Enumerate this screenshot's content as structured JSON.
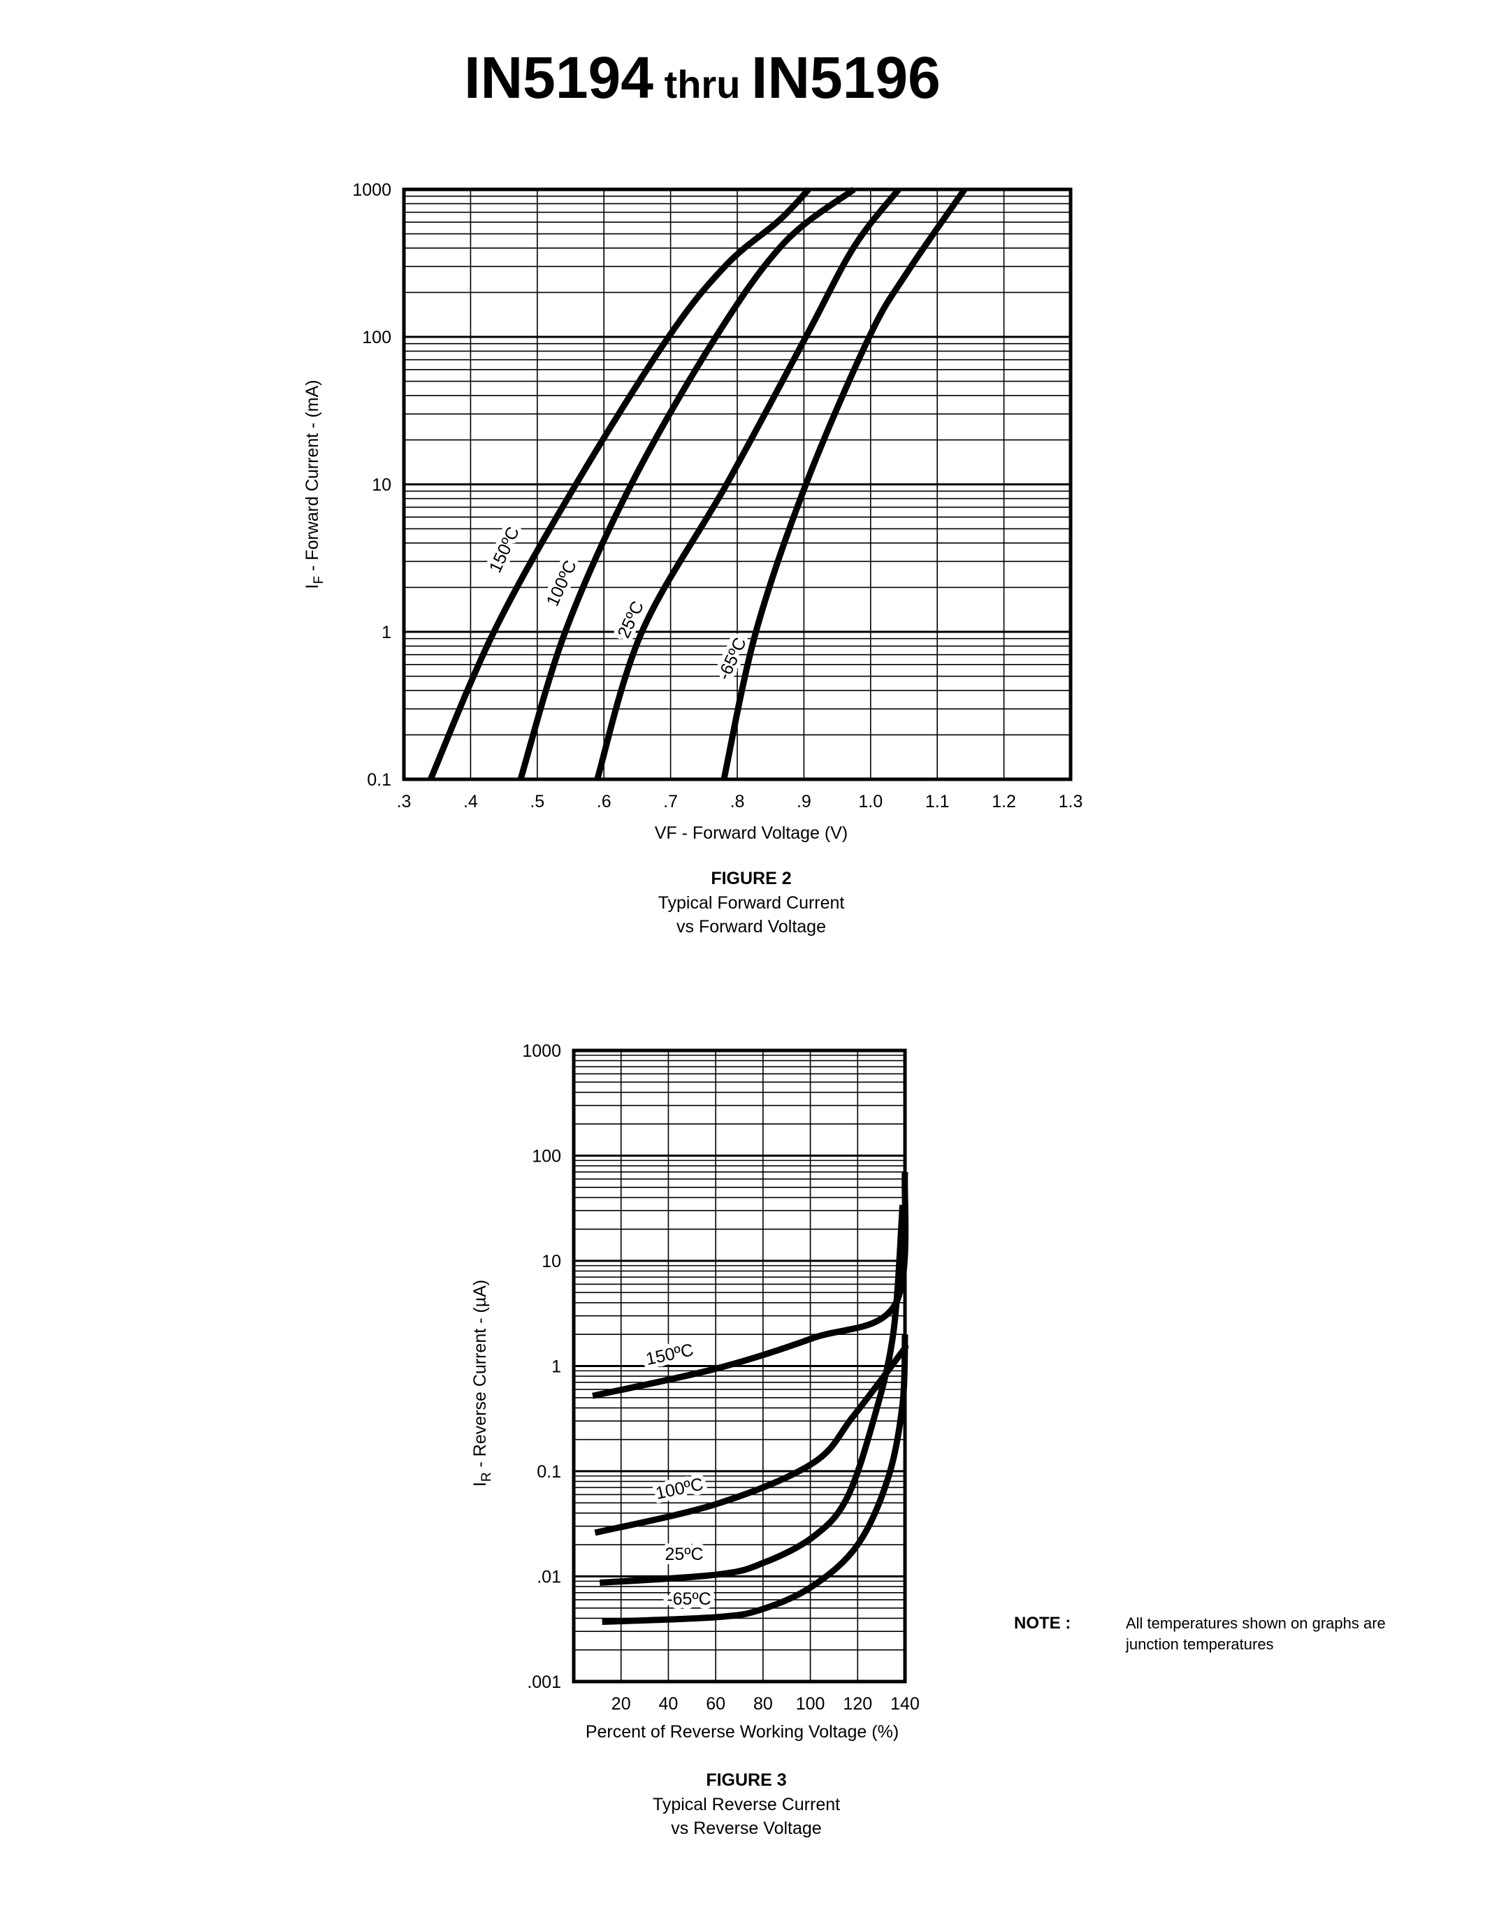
{
  "header": {
    "part_a": "IN5194",
    "thru": " thru ",
    "part_b": "IN5196"
  },
  "note": {
    "label": "NOTE :",
    "line1": "All temperatures shown on graphs are",
    "line2": "junction temperatures"
  },
  "chart_data": [
    {
      "id": "figure2",
      "type": "line",
      "figure_label": "FIGURE 2",
      "caption_line1": "Typical Forward Current",
      "caption_line2": "vs Forward Voltage",
      "xlabel": "VF - Forward Voltage (V)",
      "ylabel_main": "I",
      "ylabel_sub": "F",
      "ylabel_rest": " - Forward Current - (mA)",
      "xscale": "linear",
      "yscale": "log",
      "xlim": [
        0.3,
        1.3
      ],
      "ylim": [
        0.1,
        1000
      ],
      "grid": true,
      "xticks": [
        0.3,
        0.4,
        0.5,
        0.6,
        0.7,
        0.8,
        0.9,
        1.0,
        1.1,
        1.2,
        1.3
      ],
      "xtick_labels": [
        ".3",
        ".4",
        ".5",
        ".6",
        ".7",
        ".8",
        ".9",
        "1.0",
        "1.1",
        "1.2",
        "1.3"
      ],
      "yticks": [
        0.1,
        1,
        10,
        100,
        1000
      ],
      "ytick_labels": [
        "0.1",
        "1",
        "10",
        "100",
        "1000"
      ],
      "series": [
        {
          "name": "150ºC",
          "x": [
            0.34,
            0.435,
            0.558,
            0.697,
            0.784,
            0.863,
            0.907
          ],
          "y": [
            0.1,
            1,
            10,
            100,
            309,
            617,
            1000
          ]
        },
        {
          "name": "100ºC",
          "x": [
            0.475,
            0.542,
            0.641,
            0.768,
            0.871,
            0.975
          ],
          "y": [
            0.1,
            1,
            10,
            100,
            437,
            1000
          ]
        },
        {
          "name": "25ºC",
          "x": [
            0.59,
            0.657,
            0.784,
            0.903,
            0.975,
            1.042
          ],
          "y": [
            0.1,
            1,
            10,
            100,
            407,
            1000
          ]
        },
        {
          "name": "-65ºC",
          "x": [
            0.78,
            0.828,
            0.903,
            0.998,
            1.054,
            1.141
          ],
          "y": [
            0.1,
            1,
            10,
            100,
            270,
            1000
          ]
        }
      ]
    },
    {
      "id": "figure3",
      "type": "line",
      "figure_label": "FIGURE 3",
      "caption_line1": "Typical Reverse Current",
      "caption_line2": "vs Reverse Voltage",
      "xlabel": "Percent of Reverse Working Voltage (%)",
      "ylabel_main": "I",
      "ylabel_sub": "R",
      "ylabel_rest": " - Reverse Current - (µA)",
      "xscale": "linear",
      "yscale": "log",
      "xlim": [
        0,
        140
      ],
      "ylim": [
        0.001,
        1000
      ],
      "grid": true,
      "xticks": [
        20,
        40,
        60,
        80,
        100,
        120,
        140
      ],
      "xtick_labels": [
        "20",
        "40",
        "60",
        "80",
        "100",
        "120",
        "140"
      ],
      "yticks": [
        0.001,
        0.01,
        0.1,
        1,
        10,
        100,
        1000
      ],
      "ytick_labels": [
        ".001",
        ".01",
        "0.1",
        "1",
        "10",
        "100",
        "1000"
      ],
      "series": [
        {
          "name": "150ºC",
          "x": [
            8,
            60.6,
            101,
            136,
            140
          ],
          "y": [
            0.52,
            0.95,
            1.84,
            3.9,
            70
          ]
        },
        {
          "name": "100ºC",
          "x": [
            9,
            60.6,
            101,
            118,
            138,
            140
          ],
          "y": [
            0.026,
            0.049,
            0.119,
            0.33,
            1.29,
            1.5
          ]
        },
        {
          "name": "25ºC",
          "x": [
            11,
            60.6,
            80,
            101,
            115,
            126,
            135,
            139
          ],
          "y": [
            0.0087,
            0.0104,
            0.0134,
            0.0236,
            0.053,
            0.27,
            2.0,
            34
          ]
        },
        {
          "name": "-65ºC",
          "x": [
            12,
            60.6,
            80,
            101,
            120,
            133,
            139,
            140
          ],
          "y": [
            0.0037,
            0.0041,
            0.0049,
            0.0081,
            0.02,
            0.088,
            0.44,
            2
          ]
        }
      ]
    }
  ]
}
